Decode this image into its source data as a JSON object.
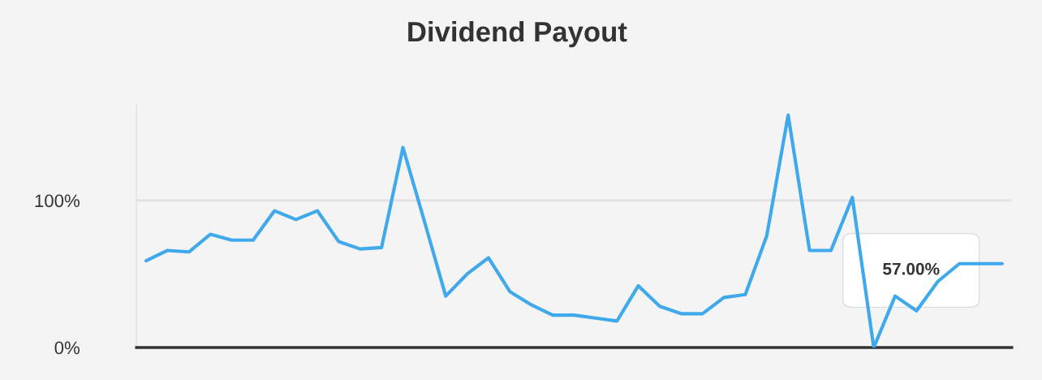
{
  "chart_data": {
    "type": "line",
    "title": "Dividend Payout",
    "categories": [
      null,
      null,
      null,
      null,
      null,
      null,
      null,
      null,
      null,
      null,
      null,
      null,
      null,
      null,
      null,
      null,
      null,
      null,
      null,
      null,
      null,
      null,
      null,
      null,
      null,
      null,
      null,
      null,
      null,
      null,
      null,
      null,
      null,
      null,
      null,
      null,
      null,
      null,
      null,
      null,
      null
    ],
    "series": [
      {
        "color": "#3fa9ec",
        "values": [
          59,
          66,
          65,
          77,
          73,
          73,
          93,
          87,
          93,
          72,
          67,
          68,
          136,
          86,
          35,
          50,
          61,
          38,
          29,
          22,
          22,
          20,
          18,
          42,
          28,
          23,
          23,
          34,
          36,
          76,
          158,
          66,
          66,
          102,
          0,
          35,
          25,
          45,
          57,
          57,
          57
        ]
      }
    ],
    "ylim": [
      0,
      165
    ],
    "yticks": [
      {
        "value": 0,
        "label": "0%"
      },
      {
        "value": 100,
        "label": "100%"
      }
    ],
    "grid": "y",
    "tick_labels": "y",
    "marker": "none",
    "line_style": "solid",
    "annotations": [
      "57.00%"
    ]
  }
}
